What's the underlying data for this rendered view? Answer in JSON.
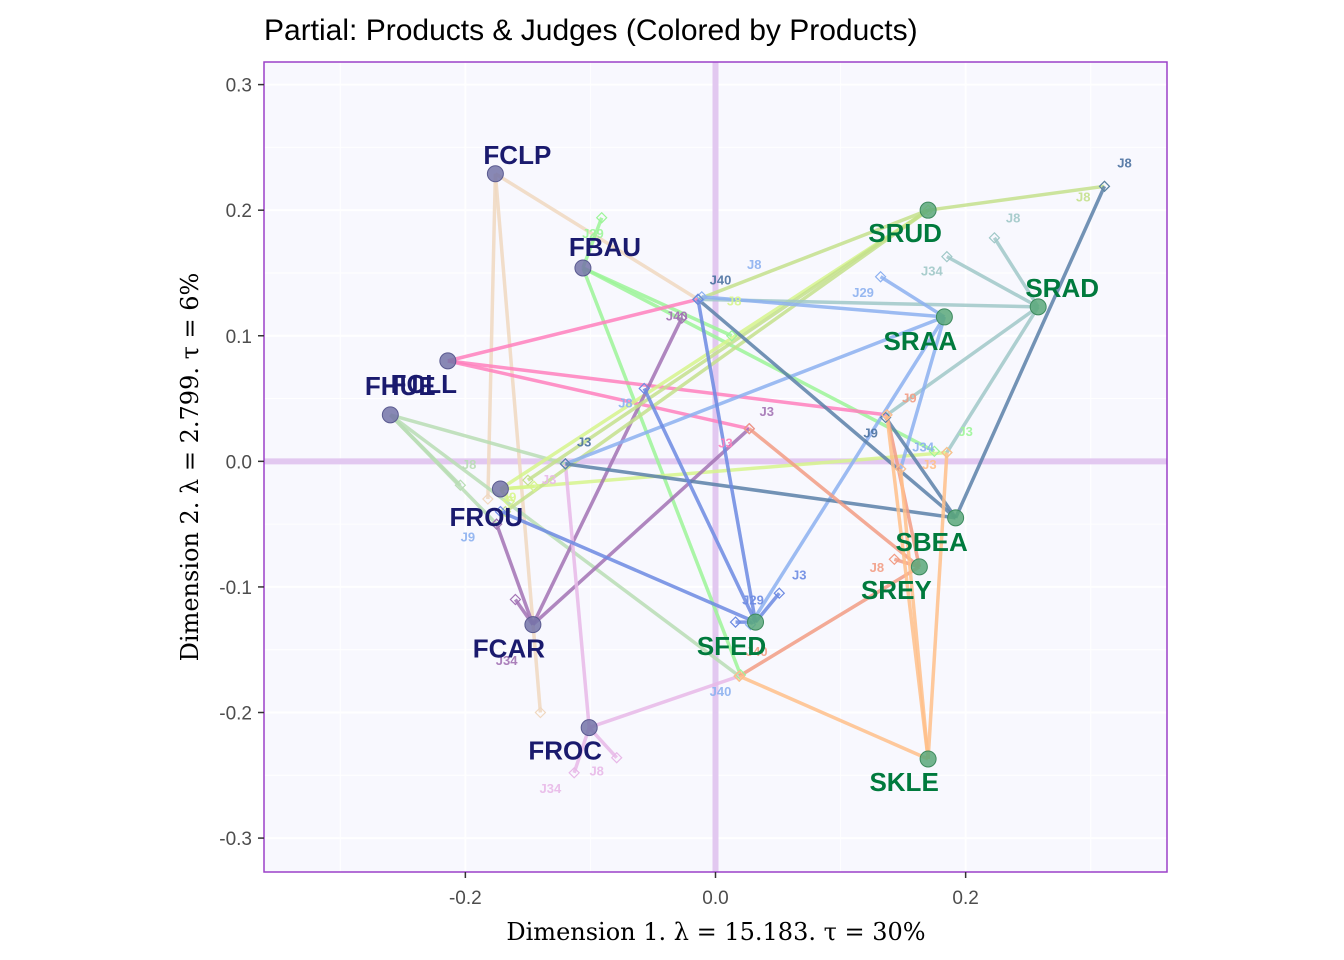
{
  "chart_data": {
    "type": "scatter",
    "title": "Partial: Products & Judges (Colored by Products)",
    "xlabel": "Dimension 1.   λ = 15.183.  τ = 30%",
    "ylabel": "Dimension 2.   λ = 2.799.  τ = 6%",
    "xlim": [
      -0.361,
      0.361
    ],
    "ylim": [
      -0.327,
      0.318
    ],
    "xticks": [
      -0.2,
      0.0,
      0.2
    ],
    "xtick_labels": [
      "-0.2",
      "0.0",
      "0.2"
    ],
    "yticks": [
      -0.3,
      -0.2,
      -0.1,
      0.0,
      0.1,
      0.2,
      0.3
    ],
    "ytick_labels": [
      "-0.3",
      "-0.2",
      "-0.1",
      "0.0",
      "0.1",
      "0.2",
      "0.3"
    ],
    "grid": true,
    "colors": {
      "panel_bg": "#f8f8fe",
      "panel_border": "#9b40c8",
      "origin_lines": "#e2c8f0",
      "group_F_label": "#1a1a6e",
      "group_S_label": "#007a3d",
      "group_F_point": "#7474a8",
      "group_S_point": "#5aa87a"
    },
    "products": [
      {
        "name": "FCLP",
        "group": "F",
        "x": -0.176,
        "y": 0.229,
        "color": "#f0d8c0",
        "judges": [
          {
            "id": "J40",
            "x": -0.014,
            "y": 0.129
          },
          {
            "id": "J3",
            "x": -0.182,
            "y": -0.03
          },
          {
            "id": "J9",
            "x": -0.14,
            "y": -0.2
          }
        ]
      },
      {
        "name": "FBAU",
        "group": "F",
        "x": -0.106,
        "y": 0.154,
        "color": "#9cf598",
        "judges": [
          {
            "id": "J29",
            "x": -0.091,
            "y": 0.194
          },
          {
            "id": "J40",
            "x": 0.013,
            "y": 0.1
          },
          {
            "id": "J3",
            "x": 0.175,
            "y": 0.008
          },
          {
            "id": "J34",
            "x": 0.02,
            "y": -0.17
          }
        ]
      },
      {
        "name": "FCLL",
        "group": "F",
        "x": -0.214,
        "y": 0.08,
        "color": "#ff80bd",
        "judges": [
          {
            "id": "J40",
            "x": -0.014,
            "y": 0.129
          },
          {
            "id": "J3",
            "x": 0.027,
            "y": 0.026
          },
          {
            "id": "J9",
            "x": 0.137,
            "y": 0.037
          }
        ]
      },
      {
        "name": "FHUE",
        "group": "F",
        "x": -0.26,
        "y": 0.037,
        "color": "#b8ddb4",
        "judges": [
          {
            "id": "J8",
            "x": -0.204,
            "y": -0.019
          },
          {
            "id": "J3",
            "x": -0.12,
            "y": -0.002
          },
          {
            "id": "J9",
            "x": -0.175,
            "y": -0.05
          },
          {
            "id": "J40",
            "x": 0.019,
            "y": -0.171
          }
        ]
      },
      {
        "name": "FROU",
        "group": "F",
        "x": -0.172,
        "y": -0.022,
        "color": "#d6f58c",
        "judges": [
          {
            "id": "J29",
            "x": -0.145,
            "y": -0.02
          },
          {
            "id": "J3",
            "x": 0.185,
            "y": 0.007
          },
          {
            "id": "J9",
            "x": -0.165,
            "y": -0.032
          },
          {
            "id": "J40",
            "x": 0.17,
            "y": 0.2
          }
        ]
      },
      {
        "name": "FCAR",
        "group": "F",
        "x": -0.146,
        "y": -0.13,
        "color": "#a272b4",
        "judges": [
          {
            "id": "J34",
            "x": -0.16,
            "y": -0.11
          },
          {
            "id": "J40",
            "x": -0.027,
            "y": 0.114
          },
          {
            "id": "J3",
            "x": 0.027,
            "y": 0.026
          },
          {
            "id": "J9",
            "x": -0.175,
            "y": -0.05
          }
        ]
      },
      {
        "name": "FROC",
        "group": "F",
        "x": -0.101,
        "y": -0.212,
        "color": "#e8b8e8",
        "judges": [
          {
            "id": "J34",
            "x": -0.113,
            "y": -0.248
          },
          {
            "id": "J8",
            "x": -0.079,
            "y": -0.236
          },
          {
            "id": "J3",
            "x": -0.12,
            "y": -0.002
          },
          {
            "id": "J40",
            "x": 0.019,
            "y": -0.171
          }
        ]
      },
      {
        "name": "SRUD",
        "group": "S",
        "x": 0.17,
        "y": 0.2,
        "color": "#c4e08c",
        "judges": [
          {
            "id": "J8",
            "x": 0.311,
            "y": 0.219
          },
          {
            "id": "J40",
            "x": -0.014,
            "y": 0.129
          },
          {
            "id": "J3",
            "x": -0.15,
            "y": -0.015
          },
          {
            "id": "J9",
            "x": -0.168,
            "y": -0.04
          }
        ]
      },
      {
        "name": "SRAD",
        "group": "S",
        "x": 0.258,
        "y": 0.123,
        "color": "#a0c8c8",
        "judges": [
          {
            "id": "J8",
            "x": 0.223,
            "y": 0.178
          },
          {
            "id": "J34",
            "x": 0.185,
            "y": 0.163
          },
          {
            "id": "J40",
            "x": -0.014,
            "y": 0.129
          },
          {
            "id": "J3",
            "x": 0.185,
            "y": 0.007
          },
          {
            "id": "J9",
            "x": 0.137,
            "y": 0.037
          }
        ]
      },
      {
        "name": "SRAA",
        "group": "S",
        "x": 0.183,
        "y": 0.115,
        "color": "#8cb0f0",
        "judges": [
          {
            "id": "J29",
            "x": 0.132,
            "y": 0.147
          },
          {
            "id": "J8",
            "x": -0.011,
            "y": 0.131
          },
          {
            "id": "J34",
            "x": 0.148,
            "y": -0.006
          },
          {
            "id": "J3",
            "x": -0.12,
            "y": -0.002
          },
          {
            "id": "J40",
            "x": 0.028,
            "y": -0.13
          }
        ]
      },
      {
        "name": "SBEA",
        "group": "S",
        "x": 0.192,
        "y": -0.045,
        "color": "#5a80a8",
        "judges": [
          {
            "id": "J8",
            "x": 0.311,
            "y": 0.219
          },
          {
            "id": "J40",
            "x": -0.014,
            "y": 0.129
          },
          {
            "id": "J3",
            "x": -0.12,
            "y": -0.002
          },
          {
            "id": "J9",
            "x": 0.136,
            "y": 0.035
          }
        ]
      },
      {
        "name": "SREY",
        "group": "S",
        "x": 0.163,
        "y": -0.084,
        "color": "#f29c84",
        "judges": [
          {
            "id": "J8",
            "x": 0.143,
            "y": -0.078
          },
          {
            "id": "J3",
            "x": 0.027,
            "y": 0.026
          },
          {
            "id": "J40",
            "x": 0.019,
            "y": -0.171
          },
          {
            "id": "J9",
            "x": 0.137,
            "y": 0.037
          }
        ]
      },
      {
        "name": "SFED",
        "group": "S",
        "x": 0.032,
        "y": -0.128,
        "color": "#6c8ae2",
        "judges": [
          {
            "id": "J29",
            "x": 0.016,
            "y": -0.128
          },
          {
            "id": "J3",
            "x": 0.051,
            "y": -0.105
          },
          {
            "id": "J40",
            "x": -0.014,
            "y": 0.129
          },
          {
            "id": "J8",
            "x": -0.057,
            "y": 0.058
          },
          {
            "id": "J9",
            "x": -0.172,
            "y": -0.04
          }
        ]
      },
      {
        "name": "SKLE",
        "group": "S",
        "x": 0.17,
        "y": -0.237,
        "color": "#ffc08a",
        "judges": [
          {
            "id": "J9",
            "x": 0.137,
            "y": 0.037
          },
          {
            "id": "J34",
            "x": 0.148,
            "y": -0.006
          },
          {
            "id": "J3",
            "x": 0.185,
            "y": 0.007
          },
          {
            "id": "J40",
            "x": 0.019,
            "y": -0.171
          }
        ]
      }
    ],
    "judge_labels": [
      {
        "text": "J8",
        "x": 0.327,
        "y": 0.234,
        "color": "#4a70a0"
      },
      {
        "text": "J8",
        "x": 0.294,
        "y": 0.207,
        "color": "#c4e08c"
      },
      {
        "text": "J8",
        "x": 0.238,
        "y": 0.19,
        "color": "#a0c8c8"
      },
      {
        "text": "J34",
        "x": 0.173,
        "y": 0.148,
        "color": "#a0c8c8"
      },
      {
        "text": "J29",
        "x": 0.118,
        "y": 0.131,
        "color": "#8cb0f0"
      },
      {
        "text": "J8",
        "x": 0.031,
        "y": 0.153,
        "color": "#8cb0f0"
      },
      {
        "text": "J40",
        "x": 0.004,
        "y": 0.141,
        "color": "#4a70a0"
      },
      {
        "text": "J8",
        "x": 0.015,
        "y": 0.124,
        "color": "#d6f58c"
      },
      {
        "text": "J40",
        "x": -0.031,
        "y": 0.112,
        "color": "#a272b4"
      },
      {
        "text": "J29",
        "x": -0.098,
        "y": 0.178,
        "color": "#9cf598"
      },
      {
        "text": "J8",
        "x": -0.072,
        "y": 0.043,
        "color": "#8cb0f0"
      },
      {
        "text": "J3",
        "x": -0.105,
        "y": 0.012,
        "color": "#4a70a0"
      },
      {
        "text": "J3",
        "x": 0.041,
        "y": 0.036,
        "color": "#a272b4"
      },
      {
        "text": "J3",
        "x": 0.008,
        "y": 0.011,
        "color": "#ff80bd"
      },
      {
        "text": "J9",
        "x": 0.155,
        "y": 0.047,
        "color": "#f29c84"
      },
      {
        "text": "J9",
        "x": 0.124,
        "y": 0.019,
        "color": "#4a70a0"
      },
      {
        "text": "J34",
        "x": 0.166,
        "y": 0.008,
        "color": "#8cb0f0"
      },
      {
        "text": "J3",
        "x": 0.171,
        "y": -0.006,
        "color": "#ffc08a"
      },
      {
        "text": "J3",
        "x": 0.2,
        "y": 0.02,
        "color": "#9cf598"
      },
      {
        "text": "J8",
        "x": -0.197,
        "y": -0.006,
        "color": "#b8ddb4"
      },
      {
        "text": "J3",
        "x": -0.133,
        "y": -0.018,
        "color": "#e8b8e8"
      },
      {
        "text": "J9",
        "x": -0.165,
        "y": -0.032,
        "color": "#d6f58c"
      },
      {
        "text": "J9",
        "x": -0.198,
        "y": -0.064,
        "color": "#8cb0f0"
      },
      {
        "text": "J34",
        "x": -0.167,
        "y": -0.162,
        "color": "#a272b4"
      },
      {
        "text": "J34",
        "x": -0.132,
        "y": -0.264,
        "color": "#e8b8e8"
      },
      {
        "text": "J8",
        "x": -0.095,
        "y": -0.25,
        "color": "#e8b8e8"
      },
      {
        "text": "J29",
        "x": 0.03,
        "y": -0.114,
        "color": "#6c8ae2"
      },
      {
        "text": "J3",
        "x": 0.067,
        "y": -0.094,
        "color": "#6c8ae2"
      },
      {
        "text": "J8",
        "x": 0.129,
        "y": -0.088,
        "color": "#f29c84"
      },
      {
        "text": "J40",
        "x": 0.033,
        "y": -0.155,
        "color": "#f29c84"
      },
      {
        "text": "J40",
        "x": 0.004,
        "y": -0.187,
        "color": "#8cb0f0"
      }
    ]
  }
}
